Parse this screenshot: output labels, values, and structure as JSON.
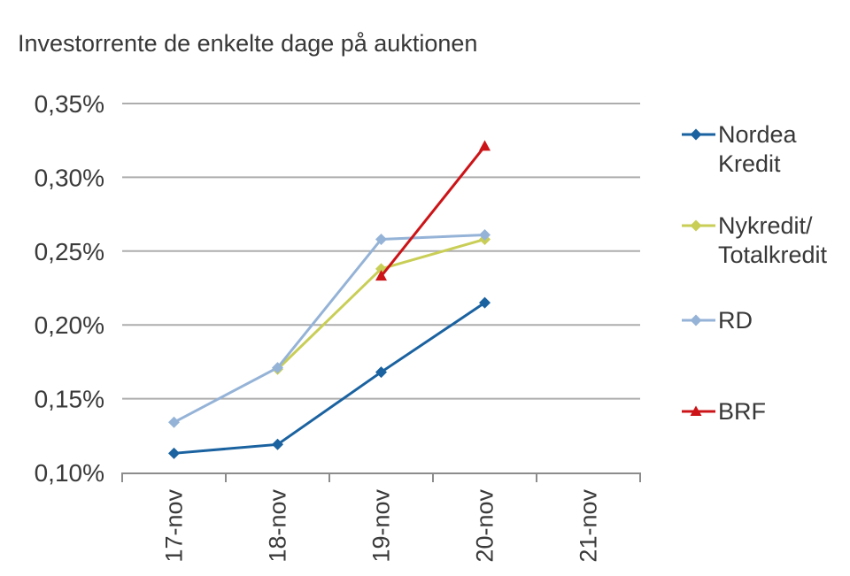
{
  "title": "Investorrente de enkelte dage på auktionen",
  "chart_data": {
    "type": "line",
    "title": "Investorrente de enkelte dage på auktionen",
    "categories": [
      "17-nov",
      "18-nov",
      "19-nov",
      "20-nov",
      "21-nov"
    ],
    "xlabel": "",
    "ylabel": "",
    "y_axis": {
      "min": 0.1,
      "max": 0.35,
      "step": 0.05,
      "tick_labels": [
        "0,10%",
        "0,15%",
        "0,20%",
        "0,25%",
        "0,30%",
        "0,35%"
      ]
    },
    "grid": true,
    "legend_position": "right",
    "series": [
      {
        "name": "Nordea Kredit",
        "legend_lines": [
          "Nordea",
          "Kredit"
        ],
        "color": "#1A62A0",
        "marker": "diamond",
        "values": [
          0.113,
          0.119,
          0.168,
          0.215,
          null
        ]
      },
      {
        "name": "Nykredit/Totalkredit",
        "legend_lines": [
          "Nykredit/",
          "Totalkredit"
        ],
        "color": "#C9CE56",
        "marker": "diamond",
        "values": [
          null,
          0.17,
          0.238,
          0.258,
          null
        ]
      },
      {
        "name": "RD",
        "legend_lines": [
          "RD"
        ],
        "color": "#95B3D7",
        "marker": "diamond",
        "values": [
          0.134,
          0.171,
          0.258,
          0.261,
          null
        ]
      },
      {
        "name": "BRF",
        "legend_lines": [
          "BRF"
        ],
        "color": "#CC1418",
        "marker": "triangle",
        "values": [
          null,
          null,
          0.233,
          0.321,
          null
        ]
      }
    ]
  },
  "colors": {
    "gridline": "#ADADAD",
    "axis": "#8C8C8C",
    "text": "#3A3A3A",
    "background": "#FFFFFF"
  }
}
